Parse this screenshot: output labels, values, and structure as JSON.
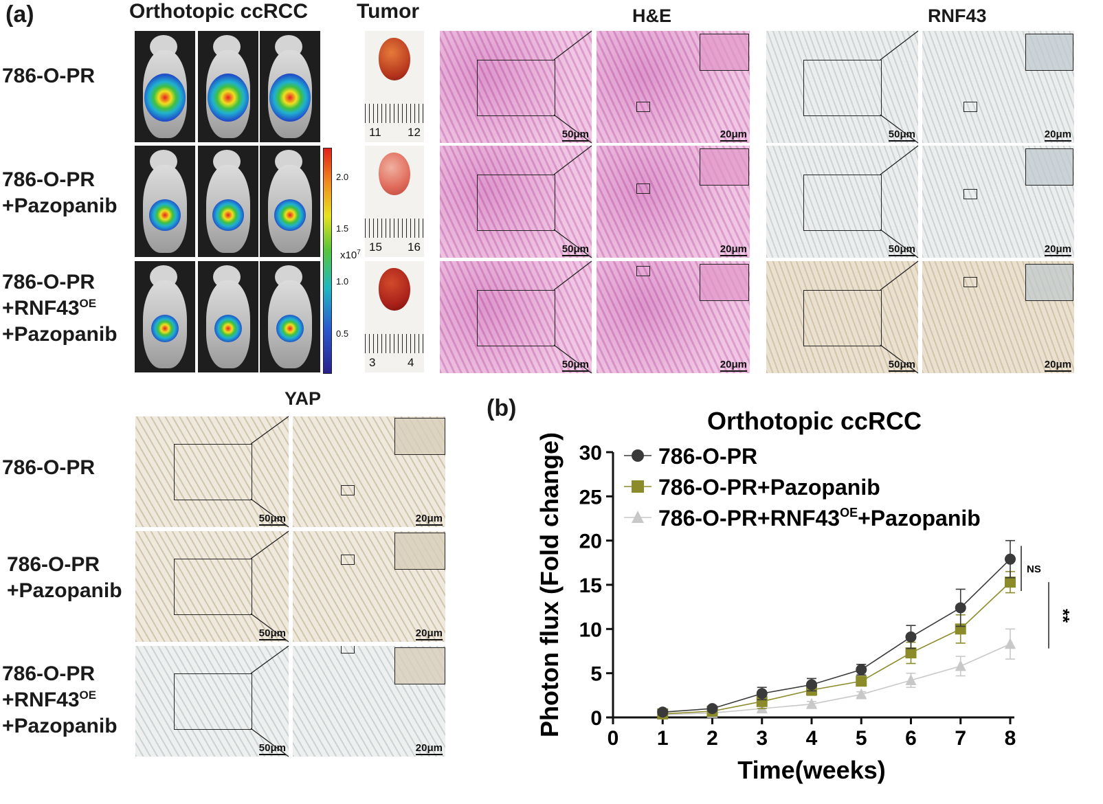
{
  "panel_a": {
    "letter": "(a)",
    "headers": {
      "orthotopic": "Orthotopic ccRCC",
      "tumor": "Tumor",
      "he": "H&E",
      "rnf43": "RNF43",
      "yap": "YAP"
    },
    "rows": [
      {
        "line1": "786-O-PR",
        "line2": "",
        "line3": ""
      },
      {
        "line1": "786-O-PR",
        "line2": "+Pazopanib",
        "line3": ""
      },
      {
        "line1": "786-O-PR",
        "line2": "+RNF43",
        "line2_sup": "OE",
        "line3": "+Pazopanib"
      }
    ],
    "yap_rows": [
      {
        "line1": "786-O-PR",
        "line2": "",
        "line3": ""
      },
      {
        "line1": "786-O-PR",
        "line2": "+Pazopanib",
        "line3": ""
      },
      {
        "line1": "786-O-PR",
        "line2": "+RNF43",
        "line2_sup": "OE",
        "line3": "+Pazopanib"
      }
    ],
    "colorbar": {
      "ticks": [
        "2.0",
        "1.5",
        "1.0",
        "0.5"
      ],
      "unit": "x10",
      "unit_sup": "7"
    },
    "rulers": [
      {
        "left": "11",
        "right": "12"
      },
      {
        "left": "15",
        "right": "16"
      },
      {
        "left": "3",
        "right": "4"
      }
    ],
    "scalebars": {
      "low": "50μm",
      "high": "20μm"
    }
  },
  "panel_b": {
    "letter": "(b)",
    "chart_data": {
      "type": "line",
      "title": "Orthotopic ccRCC",
      "xlabel": "Time(weeks)",
      "ylabel": "Photon flux (Fold change)",
      "xlim": [
        0,
        8
      ],
      "ylim": [
        0,
        30
      ],
      "xticks": [
        0,
        1,
        2,
        3,
        4,
        5,
        6,
        7,
        8
      ],
      "yticks": [
        0,
        5,
        10,
        15,
        20,
        25,
        30
      ],
      "legend_position": "top-left",
      "x": [
        1,
        2,
        3,
        4,
        5,
        6,
        7,
        8
      ],
      "series": [
        {
          "name": "786-O-PR",
          "name_sup": "",
          "name_tail": "",
          "marker": "circle",
          "color": "#3a3a3a",
          "values": [
            0.6,
            1.0,
            2.7,
            3.7,
            5.4,
            9.1,
            12.4,
            17.9
          ],
          "errors": [
            0.3,
            0.3,
            0.7,
            0.7,
            0.6,
            1.3,
            2.1,
            2.1
          ]
        },
        {
          "name": "786-O-PR+Pazopanib",
          "name_sup": "",
          "name_tail": "",
          "marker": "square",
          "color": "#8b8b2a",
          "values": [
            0.4,
            0.7,
            1.8,
            3.1,
            4.1,
            7.3,
            10.0,
            15.3
          ],
          "errors": [
            0.2,
            0.3,
            0.8,
            0.6,
            0.5,
            1.2,
            1.6,
            1.2
          ]
        },
        {
          "name": "786-O-PR+RNF43",
          "name_sup": "OE",
          "name_tail": "+Pazopanib",
          "marker": "triangle",
          "color": "#c8c8c8",
          "values": [
            0.3,
            0.5,
            1.0,
            1.5,
            2.6,
            4.2,
            5.8,
            8.3
          ],
          "errors": [
            0.1,
            0.2,
            0.3,
            0.3,
            0.3,
            0.8,
            1.1,
            1.7
          ]
        }
      ],
      "annotations": [
        "NS",
        "**"
      ]
    }
  }
}
